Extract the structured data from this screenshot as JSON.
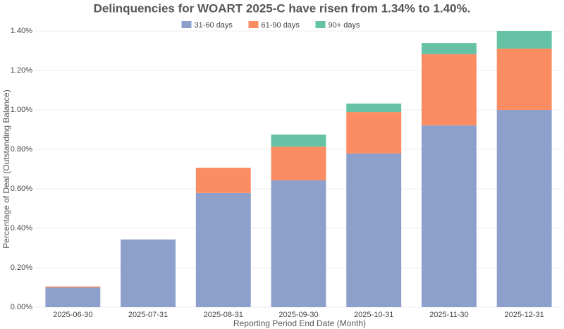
{
  "chart_data": {
    "type": "stacked_bar",
    "title": "Delinquencies for WOART 2025-C have risen from 1.34% to 1.40%.",
    "x_label": "Reporting Period End Date (Month)",
    "y_label": "Percentage of Deal (Outstanding Balance)",
    "categories": [
      "2025-06-30",
      "2025-07-31",
      "2025-08-31",
      "2025-09-30",
      "2025-10-31",
      "2025-11-30",
      "2025-12-31"
    ],
    "series": [
      {
        "name": "31-60 days",
        "color": "#8da0cb",
        "values": [
          0.1,
          0.343,
          0.579,
          0.643,
          0.779,
          0.921,
          1.0
        ]
      },
      {
        "name": "61-90 days",
        "color": "#fc8d62",
        "values": [
          0.005,
          0,
          0.128,
          0.171,
          0.21,
          0.361,
          0.311
        ]
      },
      {
        "name": "90+ days",
        "color": "#66c2a5",
        "values": [
          0,
          0,
          0,
          0.061,
          0.043,
          0.057,
          0.089
        ]
      }
    ],
    "ylim": [
      0,
      1.4
    ],
    "yticks": [
      {
        "value": 0,
        "label": "0.00%"
      },
      {
        "value": 0.2,
        "label": "0.20%"
      },
      {
        "value": 0.4,
        "label": "0.40%"
      },
      {
        "value": 0.6,
        "label": "0.60%"
      },
      {
        "value": 0.8,
        "label": "0.80%"
      },
      {
        "value": 1.0,
        "label": "1.00%"
      },
      {
        "value": 1.2,
        "label": "1.20%"
      },
      {
        "value": 1.4,
        "label": "1.40%"
      }
    ],
    "grid": true,
    "legend": "top"
  }
}
